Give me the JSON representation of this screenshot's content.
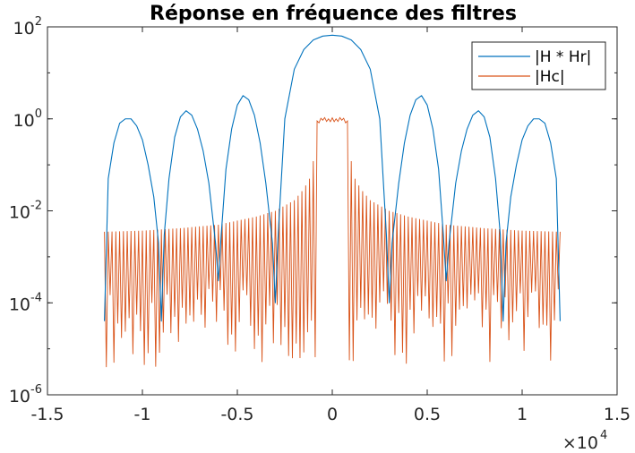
{
  "chart_data": {
    "type": "line",
    "title": "Réponse en fréquence des filtres",
    "xlabel": "",
    "ylabel": "",
    "xlim": [
      -15000,
      15000
    ],
    "ylim": [
      1e-06,
      100
    ],
    "yscale": "log",
    "grid": false,
    "legend_position": "top-right",
    "x_ticks": [
      -15000,
      -10000,
      -5000,
      0,
      5000,
      10000,
      15000
    ],
    "x_tick_labels": [
      "-1.5",
      "-1",
      "-0.5",
      "0",
      "0.5",
      "1",
      "1.5"
    ],
    "x_multiplier": {
      "base": "×10",
      "exponent": "4"
    },
    "y_ticks": [
      {
        "value": 1e-06,
        "base": "10",
        "exponent": "-6"
      },
      {
        "value": 0.0001,
        "base": "10",
        "exponent": "-4"
      },
      {
        "value": 0.01,
        "base": "10",
        "exponent": "-2"
      },
      {
        "value": 1,
        "base": "10",
        "exponent": "0"
      },
      {
        "value": 100,
        "base": "10",
        "exponent": "2"
      }
    ],
    "series": [
      {
        "name": "|H * Hr|",
        "color": "#0072BD",
        "x": [
          -12000,
          -11800,
          -11500,
          -11200,
          -10900,
          -10600,
          -10300,
          -10000,
          -9700,
          -9400,
          -9150,
          -9000,
          -8850,
          -8600,
          -8300,
          -8000,
          -7700,
          -7400,
          -7100,
          -6800,
          -6500,
          -6150,
          -6000,
          -5850,
          -5600,
          -5300,
          -5000,
          -4700,
          -4400,
          -4100,
          -3800,
          -3500,
          -3150,
          -3000,
          -2850,
          -2500,
          -2000,
          -1500,
          -1000,
          -500,
          0,
          500,
          1000,
          1500,
          2000,
          2500,
          2850,
          3000,
          3150,
          3500,
          3800,
          4100,
          4400,
          4700,
          5000,
          5300,
          5600,
          5850,
          6000,
          6150,
          6500,
          6800,
          7100,
          7400,
          7700,
          8000,
          8300,
          8600,
          8850,
          9000,
          9150,
          9400,
          9700,
          10000,
          10300,
          10600,
          10900,
          11200,
          11500,
          11800,
          12000
        ],
        "y": [
          4e-05,
          0.05,
          0.3,
          0.8,
          1.0,
          1.0,
          0.7,
          0.35,
          0.1,
          0.02,
          0.002,
          4e-05,
          0.003,
          0.05,
          0.4,
          1.1,
          1.5,
          1.2,
          0.6,
          0.2,
          0.04,
          0.002,
          0.0003,
          0.003,
          0.08,
          0.6,
          2.0,
          3.2,
          2.6,
          1.2,
          0.3,
          0.04,
          0.002,
          0.0001,
          0.003,
          1.0,
          12,
          32,
          52,
          63,
          66,
          63,
          52,
          32,
          12,
          1.0,
          0.003,
          0.0001,
          0.002,
          0.04,
          0.3,
          1.2,
          2.6,
          3.2,
          2.0,
          0.6,
          0.08,
          0.003,
          0.0003,
          0.002,
          0.04,
          0.2,
          0.6,
          1.2,
          1.5,
          1.1,
          0.4,
          0.05,
          0.003,
          4e-05,
          0.002,
          0.02,
          0.1,
          0.35,
          0.7,
          1.0,
          1.0,
          0.8,
          0.3,
          0.05,
          4e-05
        ]
      },
      {
        "name": "|Hc|",
        "color": "#D95319",
        "envelope_x": [
          -12000,
          -10000,
          -8000,
          -6000,
          -4000,
          -3000,
          -2000,
          -1500,
          -1200,
          -1000,
          -800,
          -500,
          -200,
          0,
          200,
          500,
          800,
          1000,
          1200,
          1500,
          2000,
          3000,
          4000,
          6000,
          8000,
          10000,
          12000
        ],
        "envelope_y": [
          0.0035,
          0.0037,
          0.0042,
          0.005,
          0.0075,
          0.01,
          0.017,
          0.03,
          0.05,
          0.12,
          0.9,
          1.1,
          1.0,
          1.05,
          1.0,
          1.1,
          0.9,
          0.12,
          0.05,
          0.03,
          0.017,
          0.01,
          0.0075,
          0.005,
          0.0042,
          0.0037,
          0.0035
        ],
        "notch_spacing": 200,
        "notch_depth_min": 4e-06,
        "notch_depth_max": 0.0002
      }
    ]
  }
}
